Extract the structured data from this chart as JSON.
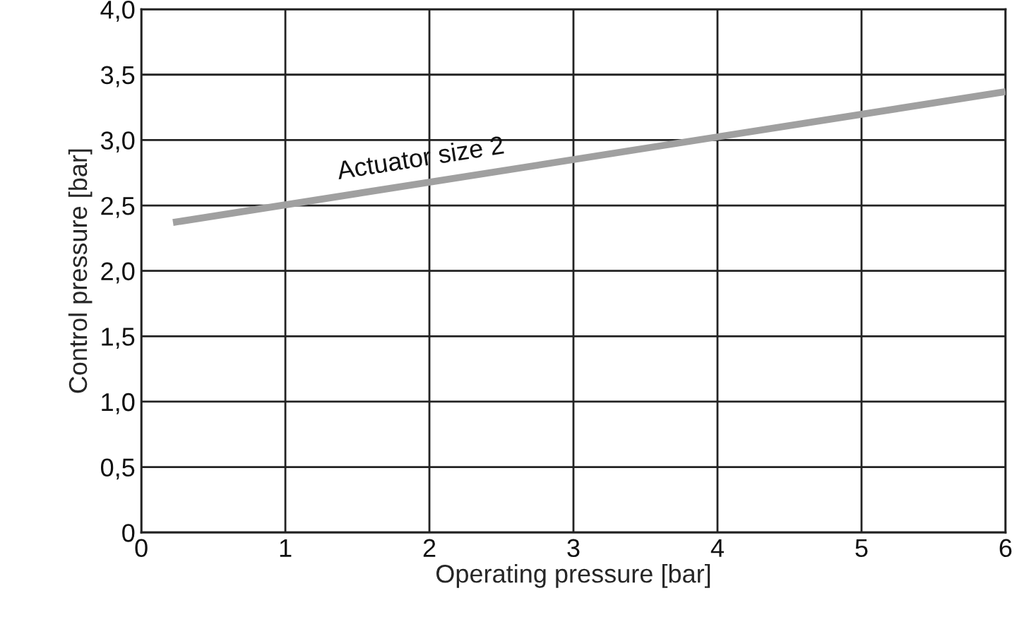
{
  "chart_data": {
    "type": "line",
    "xlabel": "Operating pressure [bar]",
    "ylabel": "Control pressure [bar]",
    "series": [
      {
        "name": "Actuator size 2",
        "color": "#a0a0a0",
        "x": [
          0.22,
          6
        ],
        "values": [
          2.37,
          3.37
        ]
      }
    ],
    "xlim": [
      0,
      6
    ],
    "ylim": [
      0,
      4
    ],
    "xticks": [
      0,
      1,
      2,
      3,
      4,
      5,
      6
    ],
    "yticks": [
      0,
      {
        "value": 0.5,
        "label": "0,5"
      },
      {
        "value": 1,
        "label": "1,0"
      },
      {
        "value": 1.5,
        "label": "1,5"
      },
      {
        "value": 2,
        "label": "2,0"
      },
      {
        "value": 2.5,
        "label": "2,5"
      },
      {
        "value": 3,
        "label": "3,0"
      },
      {
        "value": 3.5,
        "label": "3,5"
      },
      {
        "value": 4,
        "label": "4,0"
      }
    ],
    "grid": true,
    "line_style": "solid",
    "marker": "none"
  }
}
